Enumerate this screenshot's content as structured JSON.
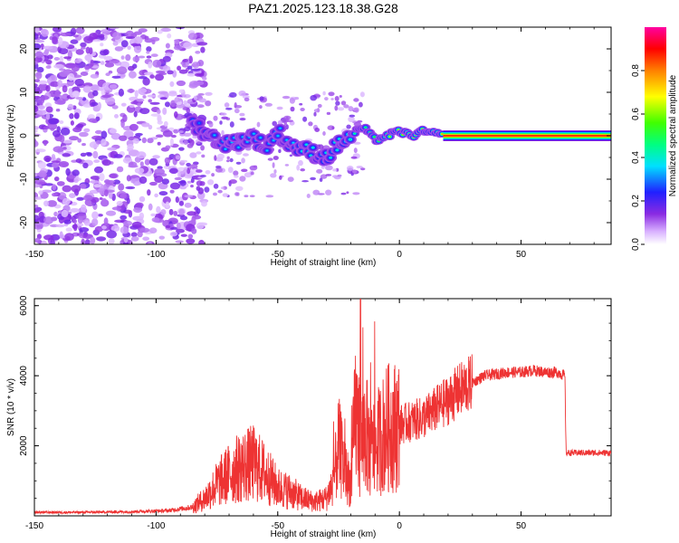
{
  "title": "PAZ1.2025.123.18.38.G28",
  "colors": {
    "snr_line": "#ee3333",
    "noise": "#7a2cf0",
    "background": "#ffffff"
  },
  "chart_data": [
    {
      "type": "heatmap",
      "xlabel": "Height of straight line (km)",
      "ylabel": "Frequency (Hz)",
      "xlim": [
        -150,
        87
      ],
      "ylim": [
        -25,
        25
      ],
      "x_ticks": [
        "-150",
        "-100",
        "-50",
        "0",
        "50"
      ],
      "y_ticks": [
        "20",
        "10",
        "0",
        "-10",
        "-20"
      ],
      "colorbar": {
        "label": "Normalized spectral amplitude",
        "range": [
          0,
          1
        ],
        "ticks": [
          "0.0",
          "0.2",
          "0.4",
          "0.6",
          "0.8"
        ],
        "colormap": "rainbow (white-violet-blue-cyan-green-yellow-red-magenta)"
      },
      "ridge": [
        {
          "x": -85,
          "y": 3,
          "amp": 0.3
        },
        {
          "x": -80,
          "y": 1,
          "amp": 0.3
        },
        {
          "x": -75,
          "y": -1,
          "amp": 0.35
        },
        {
          "x": -70,
          "y": -2,
          "amp": 0.35
        },
        {
          "x": -65,
          "y": -1,
          "amp": 0.35
        },
        {
          "x": -60,
          "y": 0,
          "amp": 0.35
        },
        {
          "x": -55,
          "y": -3,
          "amp": 0.35
        },
        {
          "x": -50,
          "y": 1,
          "amp": 0.35
        },
        {
          "x": -45,
          "y": -2,
          "amp": 0.35
        },
        {
          "x": -40,
          "y": -3,
          "amp": 0.4
        },
        {
          "x": -35,
          "y": -4,
          "amp": 0.4
        },
        {
          "x": -30,
          "y": -5,
          "amp": 0.4
        },
        {
          "x": -25,
          "y": -2,
          "amp": 0.4
        },
        {
          "x": -20,
          "y": 0,
          "amp": 0.45
        },
        {
          "x": -15,
          "y": 2,
          "amp": 0.5
        },
        {
          "x": -10,
          "y": -1,
          "amp": 0.55
        },
        {
          "x": -5,
          "y": 0,
          "amp": 0.65
        },
        {
          "x": 0,
          "y": 1,
          "amp": 0.7
        },
        {
          "x": 5,
          "y": 0,
          "amp": 0.75
        },
        {
          "x": 10,
          "y": 1,
          "amp": 0.75
        },
        {
          "x": 18,
          "y": 0,
          "amp": 0.8
        },
        {
          "x": 30,
          "y": 0,
          "amp": 0.9
        },
        {
          "x": 50,
          "y": 0,
          "amp": 0.9
        },
        {
          "x": 70,
          "y": 0,
          "amp": 0.9
        },
        {
          "x": 87,
          "y": 0,
          "amp": 0.9
        }
      ]
    },
    {
      "type": "line",
      "xlabel": "Height of straight line (km)",
      "ylabel": "SNR (10 * v/v)",
      "xlim": [
        -150,
        87
      ],
      "ylim": [
        0,
        6200
      ],
      "x_ticks": [
        "-150",
        "-100",
        "-50",
        "0",
        "50"
      ],
      "y_ticks": [
        "2000",
        "4000",
        "6000"
      ],
      "series": [
        {
          "x": [
            -150,
            -130,
            -110,
            -95,
            -85,
            -80,
            -75,
            -70,
            -65,
            -60,
            -55,
            -50,
            -45,
            -40,
            -35,
            -30,
            -27,
            -25,
            -22,
            -20,
            -18,
            -16,
            -14,
            -12,
            -10,
            -5,
            0,
            5,
            10,
            20,
            25,
            30,
            35,
            40,
            45,
            50,
            55,
            60,
            65,
            68,
            68.5,
            75,
            87
          ],
          "y": [
            100,
            100,
            120,
            150,
            250,
            500,
            900,
            1200,
            1400,
            1500,
            1200,
            800,
            700,
            500,
            400,
            500,
            1000,
            2000,
            1200,
            900,
            3000,
            2000,
            2500,
            1800,
            2000,
            2500,
            2600,
            2700,
            2800,
            3300,
            3600,
            3800,
            4000,
            4050,
            4100,
            4100,
            4150,
            4100,
            4100,
            4000,
            1800,
            1800,
            1800
          ]
        }
      ]
    }
  ]
}
